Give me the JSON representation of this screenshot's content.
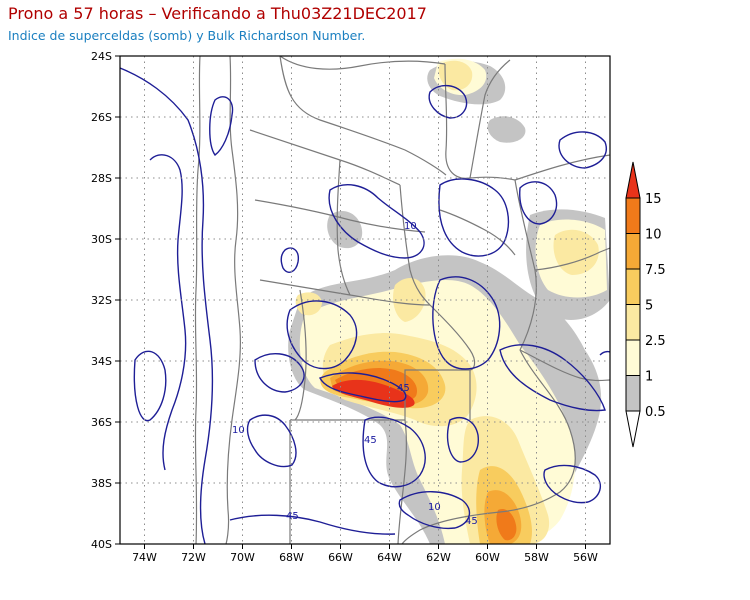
{
  "header": {
    "title": "Prono a 57 horas – Verificando a Thu03Z21DEC2017",
    "subtitle": "Indice de superceldas (somb) y Bulk Richardson Number."
  },
  "map": {
    "lat_range": [
      -40,
      -24
    ],
    "lon_range": [
      -75,
      -55
    ],
    "lat_ticks": [
      "24S",
      "26S",
      "28S",
      "30S",
      "32S",
      "34S",
      "36S",
      "38S",
      "40S"
    ],
    "lon_ticks": [
      "74W",
      "72W",
      "70W",
      "68W",
      "66W",
      "64W",
      "62W",
      "60W",
      "58W",
      "56W"
    ],
    "grid": "dotted",
    "fields": {
      "shaded": "Indice de superceldas",
      "contours": "Bulk Richardson Number"
    },
    "contour_labels": [
      "10",
      "45",
      "45",
      "10",
      "45",
      "10",
      "45"
    ]
  },
  "colorbar": {
    "labels": [
      "15",
      "10",
      "7.5",
      "5",
      "2.5",
      "1",
      "0.5"
    ],
    "colors": [
      "#e8331a",
      "#f07a1a",
      "#f5a936",
      "#f8cc5e",
      "#fbe9a2",
      "#fffbd6",
      "#c4c4c4"
    ]
  },
  "style": {
    "title_color": "#b00000",
    "subtitle_color": "#1a7fc0",
    "contour_color": "#1e1e96",
    "border_color": "#7a7a7a",
    "grid_color": "#8c8c8c"
  }
}
